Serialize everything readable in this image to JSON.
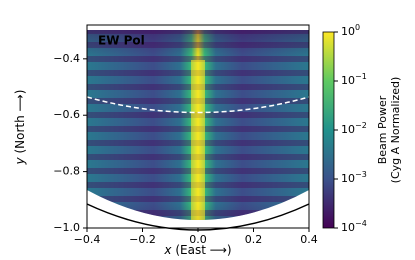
{
  "chart_data": {
    "type": "heatmap",
    "annotation": "EW Pol",
    "x_label_var": "x",
    "x_label": "(East ⟶)",
    "y_label_var": "y",
    "y_label": "(North ⟶)",
    "xlim": [
      -0.4,
      0.4
    ],
    "ylim": [
      -1.0,
      -0.28
    ],
    "xticks": [
      {
        "value": -0.4,
        "label": "−0.4"
      },
      {
        "value": -0.2,
        "label": "−0.2"
      },
      {
        "value": 0,
        "label": "0.0"
      },
      0.2,
      0.4
    ],
    "yticks": [
      {
        "value": -1.0,
        "label": "−1.0"
      },
      {
        "value": -0.8,
        "label": "−0.8"
      },
      {
        "value": -0.6,
        "label": "−0.6"
      },
      {
        "value": -0.4,
        "label": "−0.4"
      }
    ],
    "colorbar": {
      "label": [
        "Beam Power",
        "(Cyg A Normalized)"
      ],
      "log": true,
      "lim": [
        0.0001,
        1
      ],
      "ticks": [
        {
          "value": 1,
          "label": "10",
          "exponent": "0"
        },
        {
          "value": 0.1,
          "label": "10",
          "exponent": "−1"
        },
        {
          "value": 0.01,
          "label": "10",
          "exponent": "−2"
        },
        {
          "value": 0.001,
          "label": "10",
          "exponent": "−3"
        },
        {
          "value": 0.0001,
          "label": "10",
          "exponent": "−4"
        }
      ],
      "colors": [
        "#fde725",
        "#5ec962",
        "#21918c",
        "#3b528b",
        "#440154"
      ]
    }
  }
}
